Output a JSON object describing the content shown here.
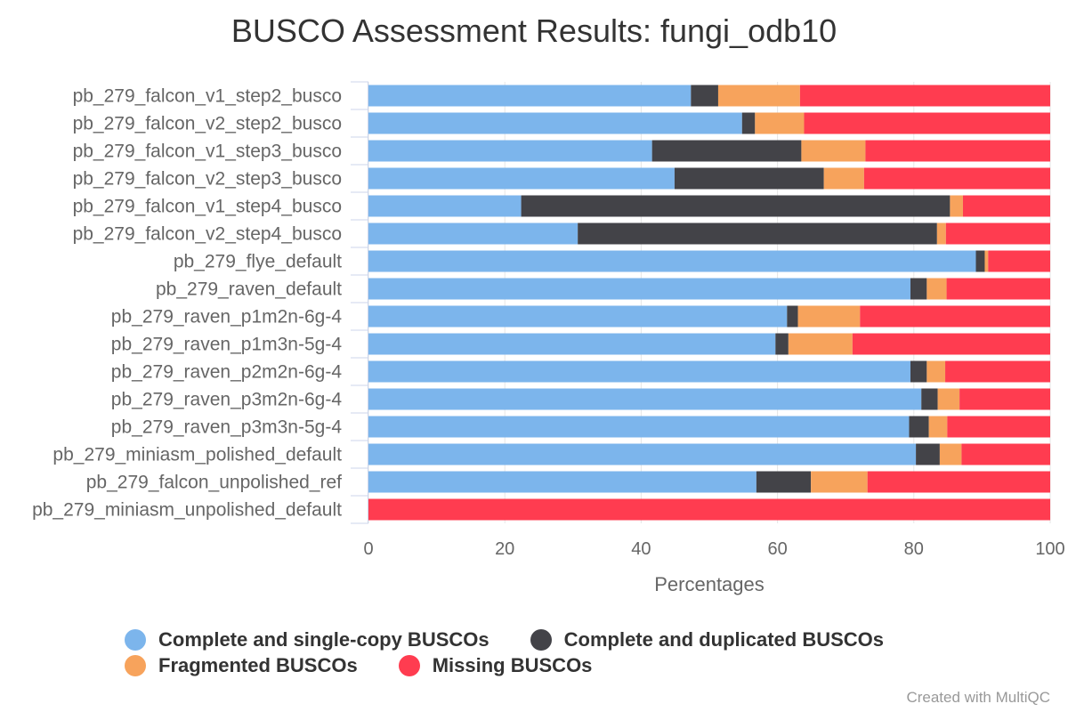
{
  "chart_data": {
    "type": "bar",
    "orientation": "horizontal",
    "stacked": true,
    "title": "BUSCO Assessment Results: fungi_odb10",
    "xlabel": "Percentages",
    "ylabel": "",
    "xlim": [
      0,
      100
    ],
    "x_ticks": [
      "0",
      "20",
      "40",
      "60",
      "80",
      "100"
    ],
    "grid": true,
    "legend_position": "bottom",
    "categories": [
      "pb_279_falcon_v1_step2_busco",
      "pb_279_falcon_v2_step2_busco",
      "pb_279_falcon_v1_step3_busco",
      "pb_279_falcon_v2_step3_busco",
      "pb_279_falcon_v1_step4_busco",
      "pb_279_falcon_v2_step4_busco",
      "pb_279_flye_default",
      "pb_279_raven_default",
      "pb_279_raven_p1m2n-6g-4",
      "pb_279_raven_p1m3n-5g-4",
      "pb_279_raven_p2m2n-6g-4",
      "pb_279_raven_p3m2n-6g-4",
      "pb_279_raven_p3m3n-5g-4",
      "pb_279_miniasm_polished_default",
      "pb_279_falcon_unpolished_ref",
      "pb_279_miniasm_unpolished_default"
    ],
    "series": [
      {
        "name": "Complete and single-copy BUSCOs",
        "color": "#7cb5ec",
        "values": [
          47.3,
          54.8,
          41.6,
          44.9,
          22.4,
          30.7,
          89.1,
          79.5,
          61.4,
          59.7,
          79.5,
          81.1,
          79.3,
          80.3,
          56.9,
          0.0
        ]
      },
      {
        "name": "Complete and duplicated BUSCOs",
        "color": "#434348",
        "values": [
          4.0,
          1.9,
          21.9,
          21.9,
          62.9,
          52.7,
          1.3,
          2.4,
          1.6,
          1.9,
          2.4,
          2.4,
          2.9,
          3.5,
          8.0,
          0.0
        ]
      },
      {
        "name": "Fragmented BUSCOs",
        "color": "#f7a35c",
        "values": [
          12.0,
          7.2,
          9.4,
          5.9,
          1.9,
          1.3,
          0.5,
          2.9,
          9.1,
          9.4,
          2.7,
          3.2,
          2.7,
          3.2,
          8.3,
          0.0
        ]
      },
      {
        "name": "Missing BUSCOs",
        "color": "#ff3c50",
        "values": [
          36.7,
          36.1,
          27.1,
          27.3,
          12.8,
          15.3,
          9.1,
          15.2,
          27.9,
          29.0,
          15.4,
          13.3,
          15.1,
          13.0,
          26.8,
          100.0
        ]
      }
    ]
  },
  "footer": {
    "credit": "Created with MultiQC"
  }
}
